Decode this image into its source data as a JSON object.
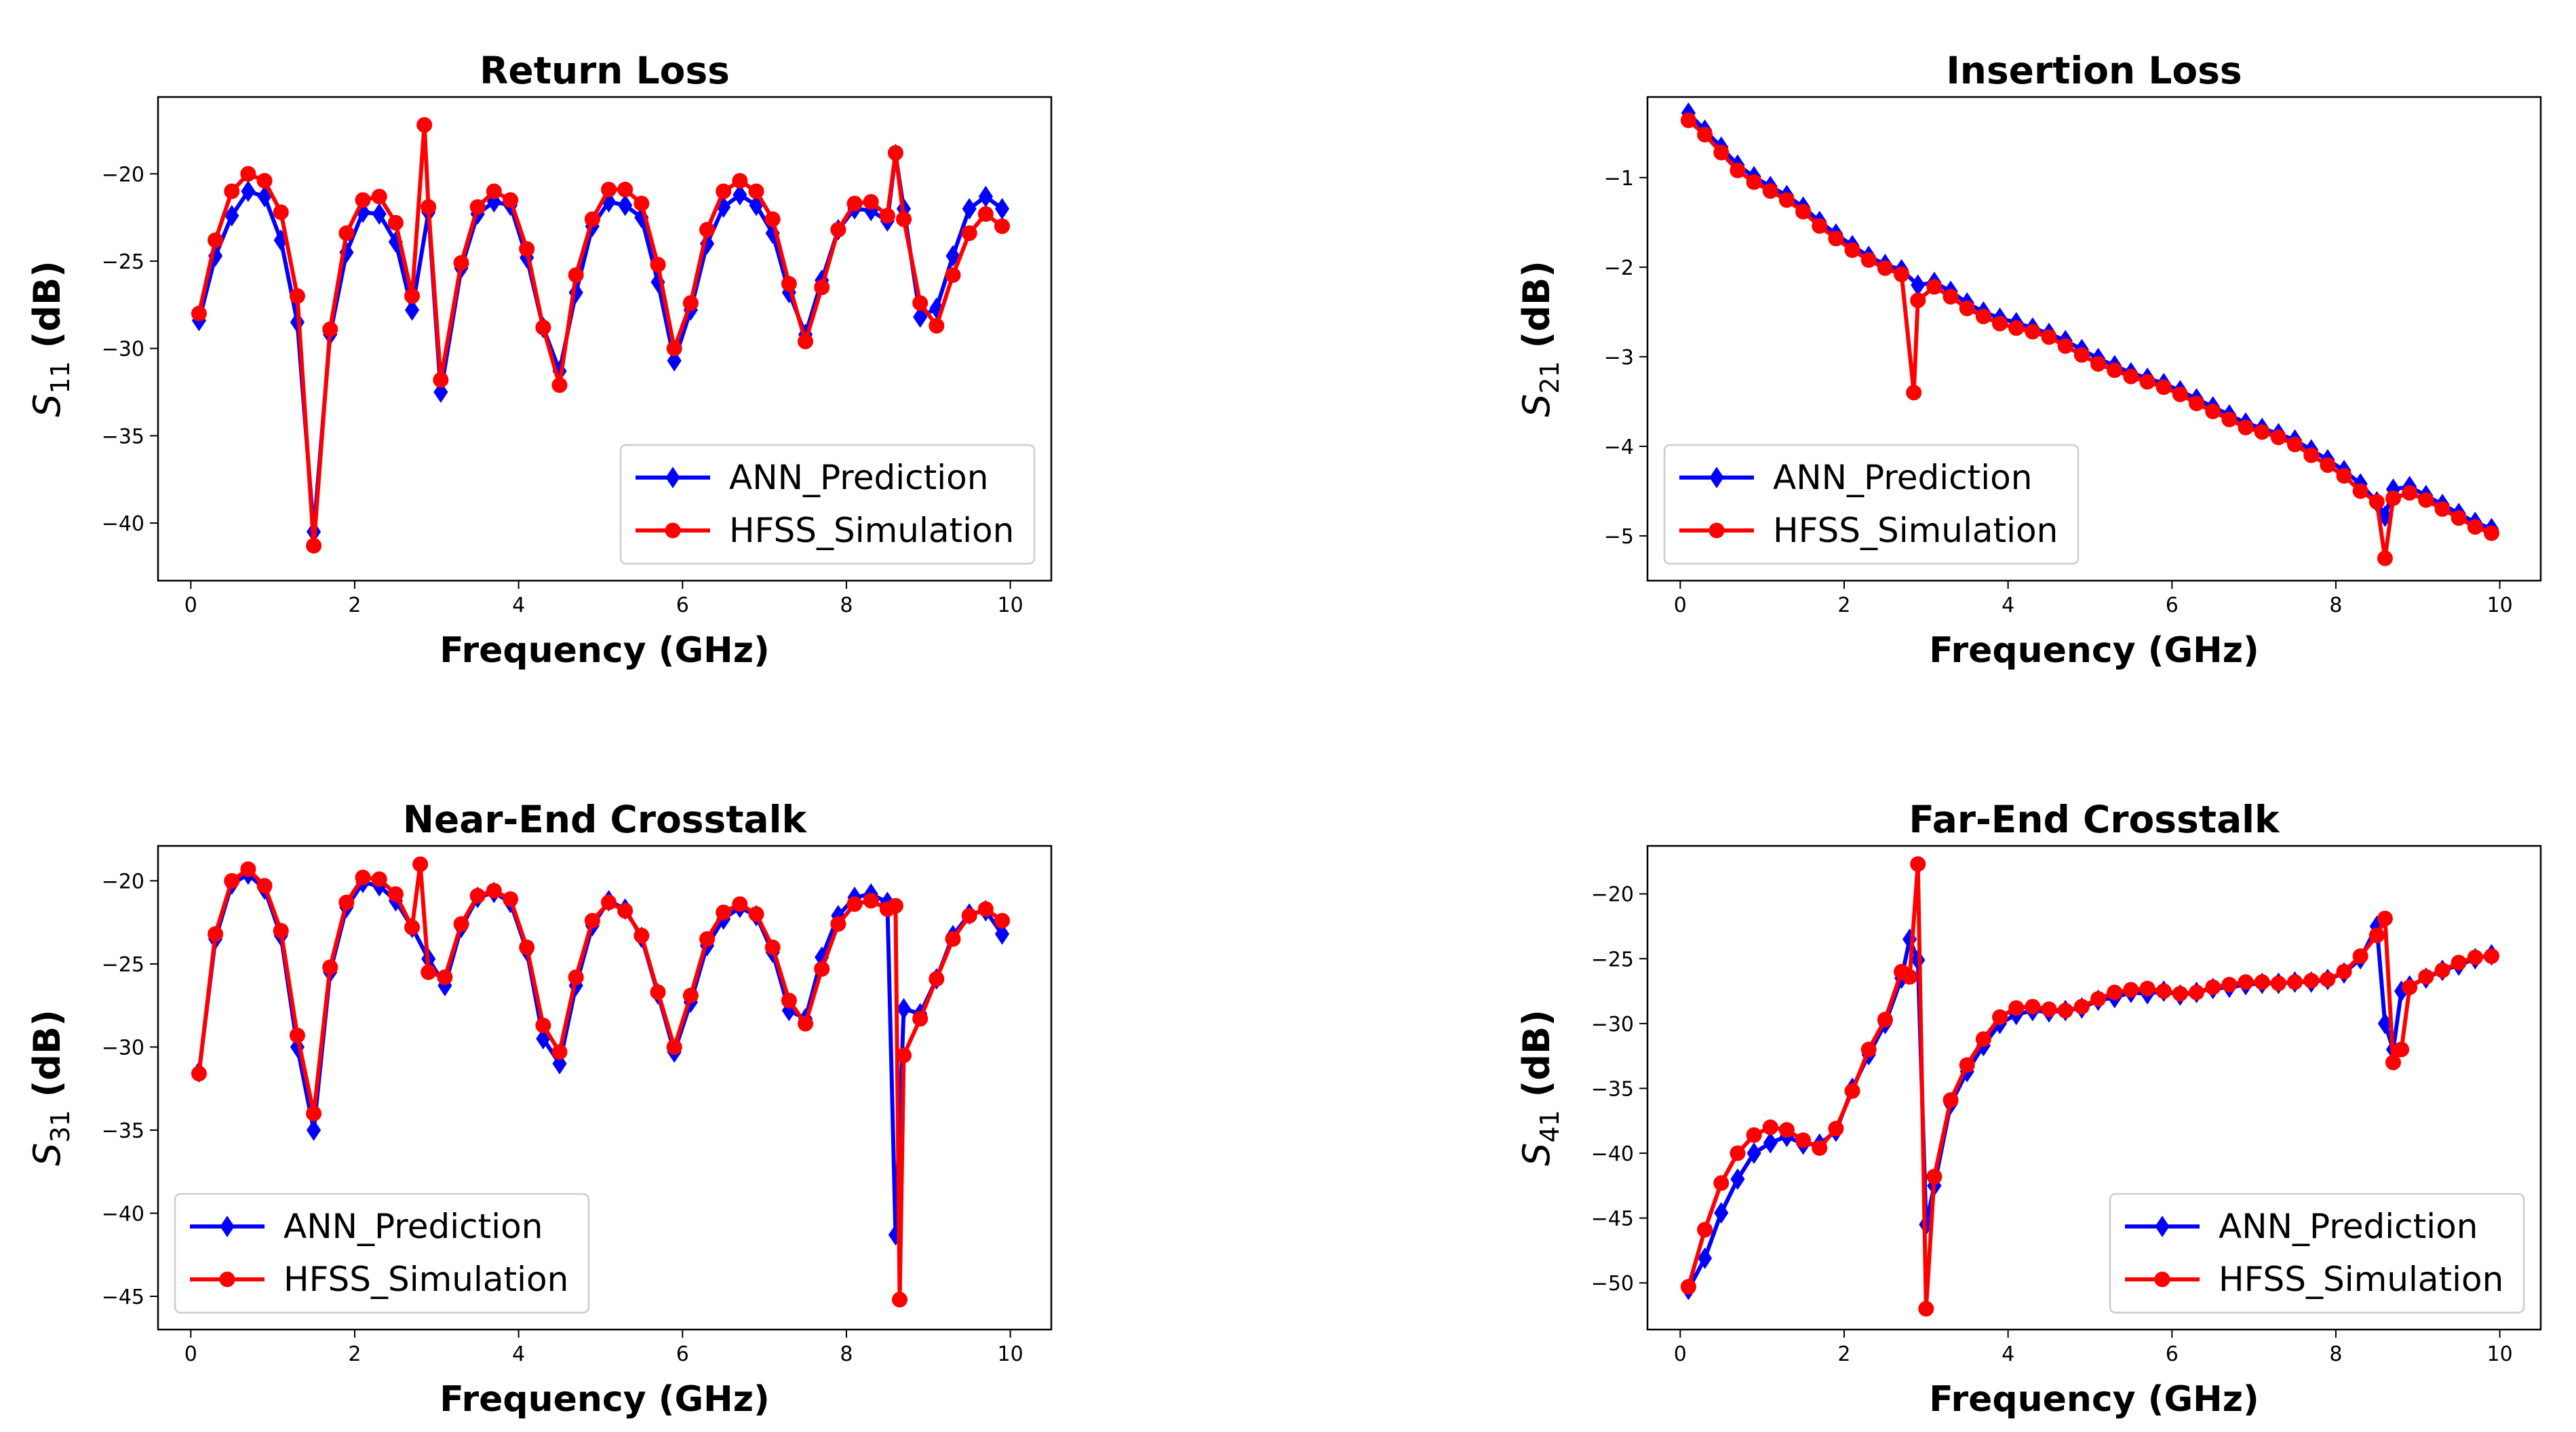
{
  "figure": {
    "colors": {
      "ann": "#0000ff",
      "hfss": "#ff0000",
      "axis": "#000000"
    }
  },
  "chart_data": [
    {
      "type": "line",
      "title": "Return Loss",
      "xlabel": "Frequency (GHz)",
      "ylabel_base": "S",
      "ylabel_sub": "11",
      "ylabel_unit": " (dB)",
      "xlim": [
        -0.4,
        10.5
      ],
      "ylim": [
        -43.3,
        -15.6
      ],
      "xticks": [
        0,
        2,
        4,
        6,
        8,
        10
      ],
      "yticks": [
        -40,
        -35,
        -30,
        -25,
        -20
      ],
      "legend": {
        "position": "lower-right",
        "entries": [
          "ANN_Prediction",
          "HFSS_Simulation"
        ]
      },
      "series": [
        {
          "name": "ANN_Prediction",
          "color": "#0000ff",
          "marker": "diamond",
          "x": [
            0.1,
            0.3,
            0.5,
            0.7,
            0.9,
            1.1,
            1.3,
            1.5,
            1.7,
            1.9,
            2.1,
            2.3,
            2.5,
            2.7,
            2.9,
            3.05,
            3.3,
            3.5,
            3.7,
            3.9,
            4.1,
            4.3,
            4.5,
            4.7,
            4.9,
            5.1,
            5.3,
            5.5,
            5.7,
            5.9,
            6.1,
            6.3,
            6.5,
            6.7,
            6.9,
            7.1,
            7.3,
            7.5,
            7.7,
            7.9,
            8.1,
            8.3,
            8.5,
            8.6,
            8.7,
            8.9,
            9.1,
            9.3,
            9.5,
            9.7,
            9.9
          ],
          "y": [
            -28.4,
            -24.7,
            -22.4,
            -21.0,
            -21.3,
            -23.8,
            -28.5,
            -40.5,
            -29.2,
            -24.5,
            -22.2,
            -22.3,
            -23.9,
            -27.8,
            -22.2,
            -32.5,
            -25.4,
            -22.3,
            -21.6,
            -21.8,
            -24.8,
            -28.8,
            -31.3,
            -26.8,
            -23.0,
            -21.6,
            -21.8,
            -22.5,
            -26.2,
            -30.7,
            -27.8,
            -24.0,
            -21.9,
            -21.2,
            -21.8,
            -23.4,
            -26.8,
            -29.2,
            -26.1,
            -23.2,
            -22.0,
            -22.1,
            -22.7,
            -18.9,
            -22.0,
            -28.2,
            -27.7,
            -24.7,
            -22.0,
            -21.3,
            -22.0
          ]
        },
        {
          "name": "HFSS_Simulation",
          "color": "#ff0000",
          "marker": "circle",
          "x": [
            0.1,
            0.3,
            0.5,
            0.7,
            0.9,
            1.1,
            1.3,
            1.5,
            1.7,
            1.9,
            2.1,
            2.3,
            2.5,
            2.7,
            2.85,
            2.9,
            3.05,
            3.3,
            3.5,
            3.7,
            3.9,
            4.1,
            4.3,
            4.5,
            4.7,
            4.9,
            5.1,
            5.3,
            5.5,
            5.7,
            5.9,
            6.1,
            6.3,
            6.5,
            6.7,
            6.9,
            7.1,
            7.3,
            7.5,
            7.7,
            7.9,
            8.1,
            8.3,
            8.5,
            8.6,
            8.7,
            8.9,
            9.1,
            9.3,
            9.5,
            9.7,
            9.9
          ],
          "y": [
            -28.0,
            -23.8,
            -21.0,
            -20.0,
            -20.4,
            -22.2,
            -27.0,
            -41.3,
            -28.9,
            -23.4,
            -21.5,
            -21.3,
            -22.8,
            -27.0,
            -17.2,
            -21.9,
            -31.8,
            -25.1,
            -21.9,
            -21.0,
            -21.5,
            -24.3,
            -28.8,
            -32.1,
            -25.8,
            -22.6,
            -20.9,
            -20.9,
            -21.7,
            -25.2,
            -30.0,
            -27.4,
            -23.2,
            -21.0,
            -20.4,
            -21.0,
            -22.6,
            -26.3,
            -29.6,
            -26.5,
            -23.2,
            -21.7,
            -21.6,
            -22.4,
            -18.8,
            -22.6,
            -27.4,
            -28.7,
            -25.8,
            -23.4,
            -22.3,
            -23.0
          ]
        }
      ]
    },
    {
      "type": "line",
      "title": "Insertion Loss",
      "xlabel": "Frequency (GHz)",
      "ylabel_base": "S",
      "ylabel_sub": "21",
      "ylabel_unit": " (dB)",
      "xlim": [
        -0.4,
        10.5
      ],
      "ylim": [
        -5.5,
        -0.1
      ],
      "xticks": [
        0,
        2,
        4,
        6,
        8,
        10
      ],
      "yticks": [
        -5,
        -4,
        -3,
        -2,
        -1
      ],
      "legend": {
        "position": "lower-left",
        "entries": [
          "ANN_Prediction",
          "HFSS_Simulation"
        ]
      },
      "series": [
        {
          "name": "ANN_Prediction",
          "color": "#0000ff",
          "marker": "diamond",
          "x": [
            0.1,
            0.3,
            0.5,
            0.7,
            0.9,
            1.1,
            1.3,
            1.5,
            1.7,
            1.9,
            2.1,
            2.3,
            2.5,
            2.7,
            2.9,
            3.1,
            3.3,
            3.5,
            3.7,
            3.9,
            4.1,
            4.3,
            4.5,
            4.7,
            4.9,
            5.1,
            5.3,
            5.5,
            5.7,
            5.9,
            6.1,
            6.3,
            6.5,
            6.7,
            6.9,
            7.1,
            7.3,
            7.5,
            7.7,
            7.9,
            8.1,
            8.3,
            8.5,
            8.6,
            8.7,
            8.9,
            9.1,
            9.3,
            9.5,
            9.7,
            9.9
          ],
          "y": [
            -0.28,
            -0.47,
            -0.66,
            -0.86,
            -0.99,
            -1.1,
            -1.2,
            -1.33,
            -1.49,
            -1.63,
            -1.76,
            -1.88,
            -1.97,
            -2.03,
            -2.2,
            -2.17,
            -2.27,
            -2.4,
            -2.5,
            -2.57,
            -2.62,
            -2.68,
            -2.74,
            -2.82,
            -2.92,
            -3.02,
            -3.1,
            -3.18,
            -3.24,
            -3.3,
            -3.38,
            -3.47,
            -3.56,
            -3.65,
            -3.74,
            -3.8,
            -3.86,
            -3.93,
            -4.04,
            -4.15,
            -4.27,
            -4.42,
            -4.62,
            -4.78,
            -4.48,
            -4.45,
            -4.55,
            -4.65,
            -4.75,
            -4.85,
            -4.92
          ]
        },
        {
          "name": "HFSS_Simulation",
          "color": "#ff0000",
          "marker": "circle",
          "x": [
            0.1,
            0.3,
            0.5,
            0.7,
            0.9,
            1.1,
            1.3,
            1.5,
            1.7,
            1.9,
            2.1,
            2.3,
            2.5,
            2.7,
            2.85,
            2.9,
            3.1,
            3.3,
            3.5,
            3.7,
            3.9,
            4.1,
            4.3,
            4.5,
            4.7,
            4.9,
            5.1,
            5.3,
            5.5,
            5.7,
            5.9,
            6.1,
            6.3,
            6.5,
            6.7,
            6.9,
            7.1,
            7.3,
            7.5,
            7.7,
            7.9,
            8.1,
            8.3,
            8.5,
            8.6,
            8.7,
            8.9,
            9.1,
            9.3,
            9.5,
            9.7,
            9.9
          ],
          "y": [
            -0.36,
            -0.52,
            -0.72,
            -0.92,
            -1.05,
            -1.15,
            -1.25,
            -1.38,
            -1.54,
            -1.68,
            -1.81,
            -1.92,
            -2.01,
            -2.08,
            -3.4,
            -2.37,
            -2.22,
            -2.33,
            -2.46,
            -2.55,
            -2.63,
            -2.68,
            -2.72,
            -2.78,
            -2.88,
            -2.98,
            -3.08,
            -3.15,
            -3.22,
            -3.28,
            -3.34,
            -3.42,
            -3.52,
            -3.61,
            -3.7,
            -3.79,
            -3.84,
            -3.9,
            -3.98,
            -4.1,
            -4.21,
            -4.33,
            -4.5,
            -4.62,
            -5.25,
            -4.58,
            -4.52,
            -4.6,
            -4.7,
            -4.8,
            -4.9,
            -4.97
          ]
        }
      ]
    },
    {
      "type": "line",
      "title": "Near-End Crosstalk",
      "xlabel": "Frequency (GHz)",
      "ylabel_base": "S",
      "ylabel_sub": "31",
      "ylabel_unit": " (dB)",
      "xlim": [
        -0.4,
        10.5
      ],
      "ylim": [
        -47.0,
        -17.9
      ],
      "xticks": [
        0,
        2,
        4,
        6,
        8,
        10
      ],
      "yticks": [
        -45,
        -40,
        -35,
        -30,
        -25,
        -20
      ],
      "legend": {
        "position": "lower-left",
        "entries": [
          "ANN_Prediction",
          "HFSS_Simulation"
        ]
      },
      "series": [
        {
          "name": "ANN_Prediction",
          "color": "#0000ff",
          "marker": "diamond",
          "x": [
            0.1,
            0.3,
            0.5,
            0.7,
            0.9,
            1.1,
            1.3,
            1.5,
            1.7,
            1.9,
            2.1,
            2.3,
            2.5,
            2.7,
            2.9,
            3.1,
            3.3,
            3.5,
            3.7,
            3.9,
            4.1,
            4.3,
            4.5,
            4.7,
            4.9,
            5.1,
            5.3,
            5.5,
            5.7,
            5.9,
            6.1,
            6.3,
            6.5,
            6.7,
            6.9,
            7.1,
            7.3,
            7.5,
            7.7,
            7.9,
            8.1,
            8.3,
            8.5,
            8.6,
            8.7,
            8.9,
            9.1,
            9.3,
            9.5,
            9.7,
            9.9
          ],
          "y": [
            -31.5,
            -23.5,
            -20.2,
            -19.6,
            -20.5,
            -23.3,
            -30.0,
            -35.0,
            -25.5,
            -21.6,
            -20.1,
            -20.3,
            -21.2,
            -22.8,
            -24.7,
            -26.3,
            -22.8,
            -21.0,
            -20.7,
            -21.3,
            -24.2,
            -29.5,
            -31.0,
            -26.3,
            -22.7,
            -21.2,
            -21.7,
            -23.4,
            -26.8,
            -30.3,
            -27.3,
            -23.9,
            -22.3,
            -21.6,
            -22.1,
            -24.3,
            -27.8,
            -28.3,
            -24.6,
            -22.1,
            -21.0,
            -20.8,
            -21.3,
            -41.3,
            -27.7,
            -28.0,
            -25.9,
            -23.3,
            -22.0,
            -21.8,
            -23.2
          ]
        },
        {
          "name": "HFSS_Simulation",
          "color": "#ff0000",
          "marker": "circle",
          "x": [
            0.1,
            0.3,
            0.5,
            0.7,
            0.9,
            1.1,
            1.3,
            1.5,
            1.7,
            1.9,
            2.1,
            2.3,
            2.5,
            2.7,
            2.8,
            2.9,
            3.1,
            3.3,
            3.5,
            3.7,
            3.9,
            4.1,
            4.3,
            4.5,
            4.7,
            4.9,
            5.1,
            5.3,
            5.5,
            5.7,
            5.9,
            6.1,
            6.3,
            6.5,
            6.7,
            6.9,
            7.1,
            7.3,
            7.5,
            7.7,
            7.9,
            8.1,
            8.3,
            8.5,
            8.6,
            8.65,
            8.7,
            8.9,
            9.1,
            9.3,
            9.5,
            9.7,
            9.9
          ],
          "y": [
            -31.6,
            -23.2,
            -20.0,
            -19.3,
            -20.3,
            -23.0,
            -29.3,
            -34.0,
            -25.2,
            -21.3,
            -19.8,
            -19.9,
            -20.8,
            -22.8,
            -19.0,
            -25.5,
            -25.8,
            -22.6,
            -20.9,
            -20.6,
            -21.1,
            -24.0,
            -28.7,
            -30.3,
            -25.8,
            -22.4,
            -21.3,
            -21.8,
            -23.3,
            -26.7,
            -30.0,
            -26.9,
            -23.5,
            -21.9,
            -21.4,
            -22.0,
            -24.0,
            -27.2,
            -28.6,
            -25.3,
            -22.6,
            -21.4,
            -21.2,
            -21.7,
            -21.5,
            -45.2,
            -30.5,
            -28.3,
            -25.9,
            -23.5,
            -22.1,
            -21.7,
            -22.4
          ]
        }
      ]
    },
    {
      "type": "line",
      "title": "Far-End Crosstalk",
      "xlabel": "Frequency (GHz)",
      "ylabel_base": "S",
      "ylabel_sub": "41",
      "ylabel_unit": " (dB)",
      "xlim": [
        -0.4,
        10.5
      ],
      "ylim": [
        -53.6,
        -16.3
      ],
      "xticks": [
        0,
        2,
        4,
        6,
        8,
        10
      ],
      "yticks": [
        -50,
        -45,
        -40,
        -35,
        -30,
        -25,
        -20
      ],
      "legend": {
        "position": "lower-right",
        "entries": [
          "ANN_Prediction",
          "HFSS_Simulation"
        ]
      },
      "series": [
        {
          "name": "ANN_Prediction",
          "color": "#0000ff",
          "marker": "diamond",
          "x": [
            0.1,
            0.3,
            0.5,
            0.7,
            0.9,
            1.1,
            1.3,
            1.5,
            1.7,
            1.9,
            2.1,
            2.3,
            2.5,
            2.7,
            2.8,
            2.9,
            3.0,
            3.1,
            3.3,
            3.5,
            3.7,
            3.9,
            4.1,
            4.3,
            4.5,
            4.7,
            4.9,
            5.1,
            5.3,
            5.5,
            5.7,
            5.9,
            6.1,
            6.3,
            6.5,
            6.7,
            6.9,
            7.1,
            7.3,
            7.5,
            7.7,
            7.9,
            8.1,
            8.3,
            8.5,
            8.6,
            8.7,
            8.8,
            8.9,
            9.1,
            9.3,
            9.5,
            9.7,
            9.9
          ],
          "y": [
            -50.5,
            -48.1,
            -44.6,
            -42.0,
            -40.0,
            -39.2,
            -38.7,
            -39.3,
            -39.3,
            -38.3,
            -35.0,
            -32.4,
            -30.0,
            -26.5,
            -23.5,
            -25.1,
            -45.5,
            -42.5,
            -36.2,
            -33.7,
            -31.7,
            -30.0,
            -29.3,
            -29.0,
            -29.1,
            -29.0,
            -28.8,
            -28.2,
            -28.0,
            -27.6,
            -27.7,
            -27.5,
            -27.8,
            -27.6,
            -27.3,
            -27.2,
            -27.0,
            -26.9,
            -26.9,
            -26.8,
            -26.8,
            -26.6,
            -26.1,
            -25.0,
            -22.5,
            -30.0,
            -32.0,
            -27.5,
            -27.1,
            -26.5,
            -25.9,
            -25.5,
            -25.0,
            -24.7
          ]
        },
        {
          "name": "HFSS_Simulation",
          "color": "#ff0000",
          "marker": "circle",
          "x": [
            0.1,
            0.3,
            0.5,
            0.7,
            0.9,
            1.1,
            1.3,
            1.5,
            1.7,
            1.9,
            2.1,
            2.3,
            2.5,
            2.7,
            2.8,
            2.9,
            3.0,
            3.1,
            3.3,
            3.5,
            3.7,
            3.9,
            4.1,
            4.3,
            4.5,
            4.7,
            4.9,
            5.1,
            5.3,
            5.5,
            5.7,
            5.9,
            6.1,
            6.3,
            6.5,
            6.7,
            6.9,
            7.1,
            7.3,
            7.5,
            7.7,
            7.9,
            8.1,
            8.3,
            8.5,
            8.6,
            8.7,
            8.8,
            8.9,
            9.1,
            9.3,
            9.5,
            9.7,
            9.9
          ],
          "y": [
            -50.3,
            -45.9,
            -42.3,
            -40.0,
            -38.6,
            -38.0,
            -38.2,
            -39.0,
            -39.6,
            -38.1,
            -35.2,
            -32.0,
            -29.7,
            -26.0,
            -26.4,
            -17.7,
            -52.0,
            -41.8,
            -35.9,
            -33.2,
            -31.2,
            -29.5,
            -28.8,
            -28.7,
            -28.9,
            -29.0,
            -28.7,
            -28.1,
            -27.6,
            -27.4,
            -27.3,
            -27.5,
            -27.7,
            -27.6,
            -27.2,
            -27.0,
            -26.8,
            -26.8,
            -26.9,
            -26.8,
            -26.7,
            -26.6,
            -26.0,
            -24.8,
            -23.2,
            -21.9,
            -33.0,
            -32.0,
            -27.2,
            -26.4,
            -25.9,
            -25.3,
            -24.9,
            -24.8
          ]
        }
      ]
    }
  ]
}
